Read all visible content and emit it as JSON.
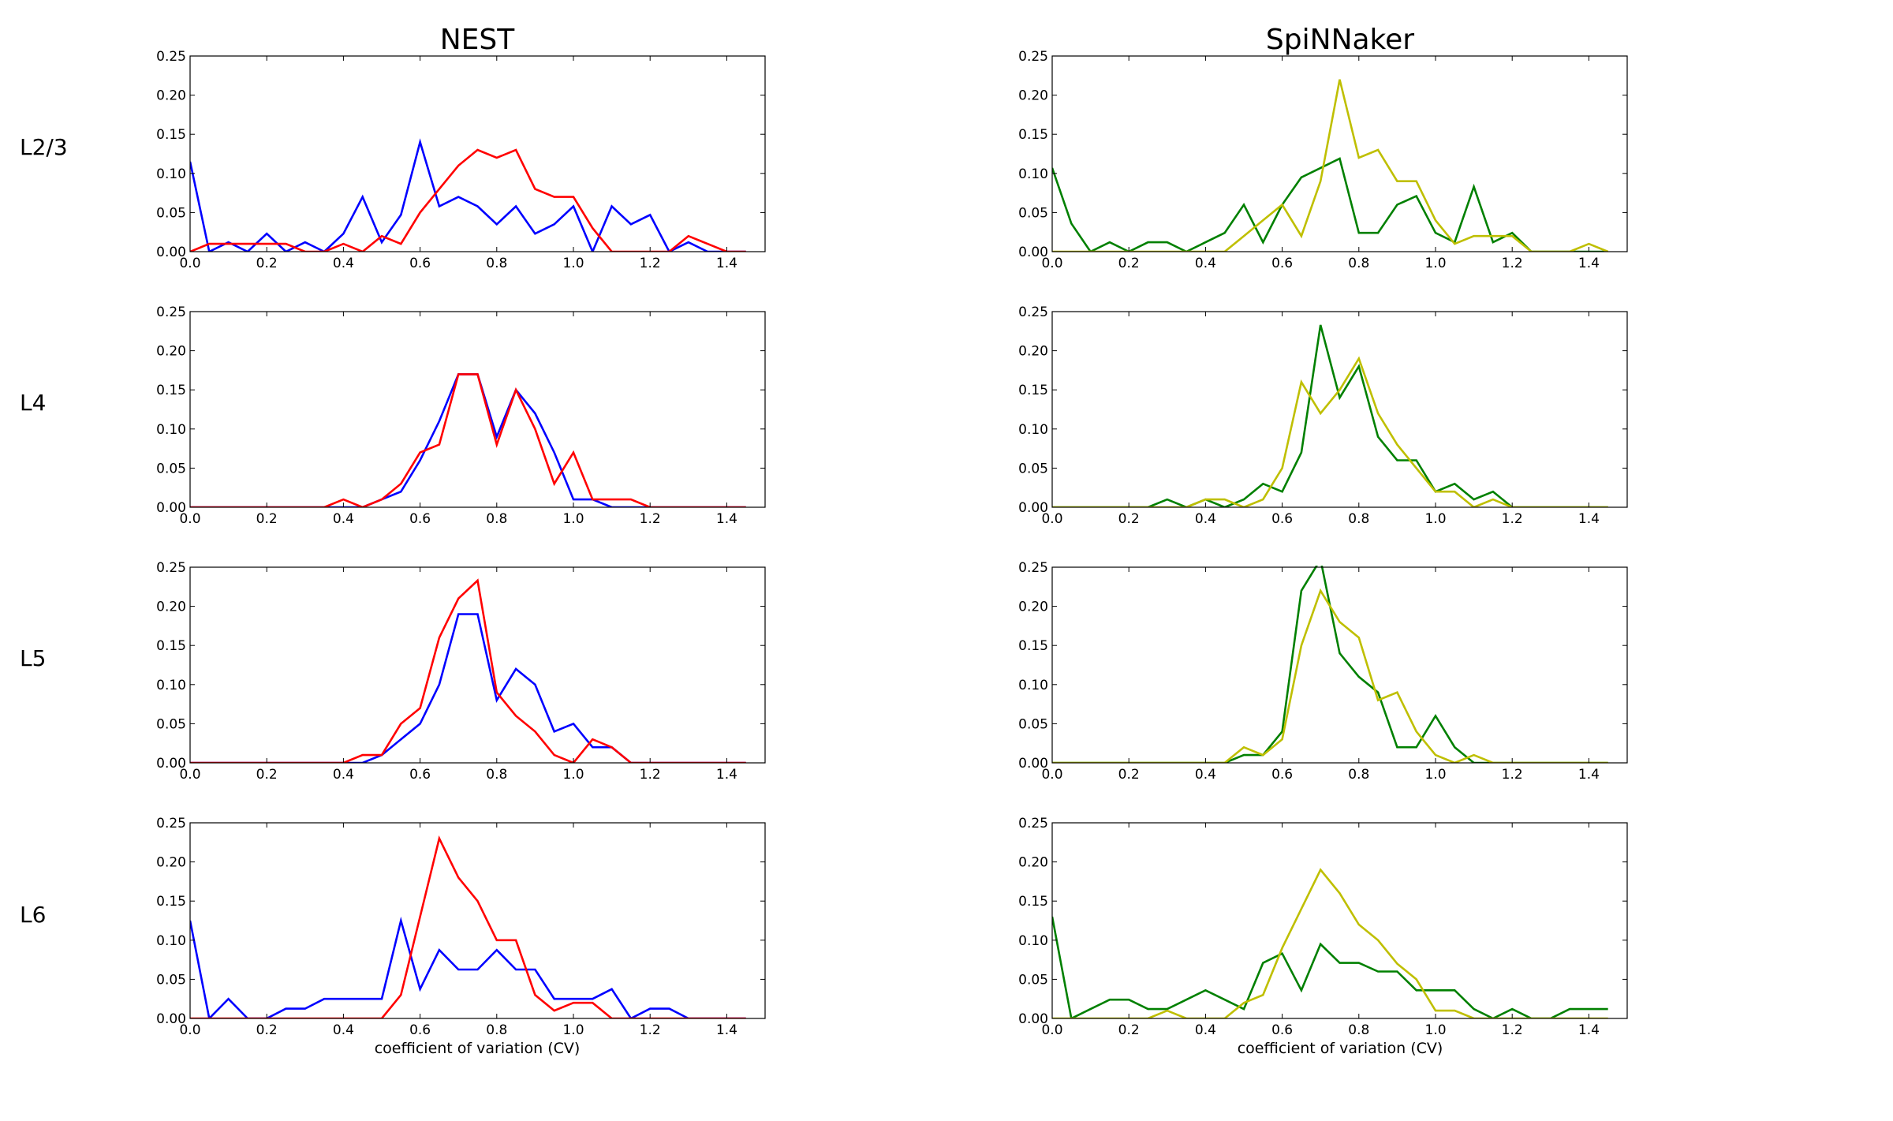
{
  "figure": {
    "column_titles": [
      "NEST",
      "SpiNNaker"
    ],
    "row_labels": [
      "L2/3",
      "L4",
      "L5",
      "L6"
    ],
    "xlabel": "coefficient of variation (CV)"
  },
  "colors": {
    "nest_series_1": "#0000ff",
    "nest_series_2": "#ff0000",
    "spinnaker_series_1": "#008000",
    "spinnaker_series_2": "#bfbf00",
    "axes": "#000000"
  },
  "chart_data": [
    {
      "type": "line",
      "column": "NEST",
      "row": "L2/3",
      "xlim": [
        0,
        1.5
      ],
      "ylim": [
        0,
        0.25
      ],
      "xticks": [
        "0.0",
        "0.2",
        "0.4",
        "0.6",
        "0.8",
        "1.0",
        "1.2",
        "1.4"
      ],
      "yticks": [
        "0.00",
        "0.05",
        "0.10",
        "0.15",
        "0.20",
        "0.25"
      ],
      "x": [
        0,
        0.05,
        0.1,
        0.15,
        0.2,
        0.25,
        0.3,
        0.35,
        0.4,
        0.45,
        0.5,
        0.55,
        0.6,
        0.65,
        0.7,
        0.75,
        0.8,
        0.85,
        0.9,
        0.95,
        1.0,
        1.05,
        1.1,
        1.15,
        1.2,
        1.25,
        1.3,
        1.35,
        1.4,
        1.45
      ],
      "series": [
        {
          "color": "blue",
          "values": [
            0.115,
            0,
            0.012,
            0,
            0.023,
            0,
            0.012,
            0,
            0.023,
            0.07,
            0.012,
            0.047,
            0.14,
            0.058,
            0.07,
            0.058,
            0.035,
            0.058,
            0.023,
            0.035,
            0.058,
            0,
            0.058,
            0.035,
            0.047,
            0,
            0.012,
            0,
            0,
            0
          ]
        },
        {
          "color": "red",
          "values": [
            0,
            0.01,
            0.01,
            0.01,
            0.01,
            0.01,
            0,
            0,
            0.01,
            0,
            0.02,
            0.01,
            0.05,
            0.08,
            0.11,
            0.13,
            0.12,
            0.13,
            0.08,
            0.07,
            0.07,
            0.03,
            0,
            0,
            0,
            0,
            0.02,
            0.01,
            0,
            0
          ]
        }
      ]
    },
    {
      "type": "line",
      "column": "SpiNNaker",
      "row": "L2/3",
      "xlim": [
        0,
        1.5
      ],
      "ylim": [
        0,
        0.25
      ],
      "xticks": [
        "0.0",
        "0.2",
        "0.4",
        "0.6",
        "0.8",
        "1.0",
        "1.2",
        "1.4"
      ],
      "yticks": [
        "0.00",
        "0.05",
        "0.10",
        "0.15",
        "0.20",
        "0.25"
      ],
      "x": [
        0,
        0.05,
        0.1,
        0.15,
        0.2,
        0.25,
        0.3,
        0.35,
        0.4,
        0.45,
        0.5,
        0.55,
        0.6,
        0.65,
        0.7,
        0.75,
        0.8,
        0.85,
        0.9,
        0.95,
        1.0,
        1.05,
        1.1,
        1.15,
        1.2,
        1.25,
        1.3,
        1.35,
        1.4,
        1.45
      ],
      "series": [
        {
          "color": "green",
          "values": [
            0.107,
            0.036,
            0,
            0.012,
            0,
            0.012,
            0.012,
            0,
            0.012,
            0.024,
            0.06,
            0.012,
            0.06,
            0.095,
            0.107,
            0.119,
            0.024,
            0.024,
            0.06,
            0.071,
            0.024,
            0.012,
            0.083,
            0.012,
            0.024,
            0,
            0,
            0,
            0,
            0
          ]
        },
        {
          "color": "yellow",
          "values": [
            0,
            0,
            0,
            0,
            0,
            0,
            0,
            0,
            0,
            0,
            0.02,
            0.04,
            0.06,
            0.02,
            0.09,
            0.22,
            0.12,
            0.13,
            0.09,
            0.09,
            0.04,
            0.01,
            0.02,
            0.02,
            0.02,
            0,
            0,
            0,
            0.01,
            0
          ]
        }
      ]
    },
    {
      "type": "line",
      "column": "NEST",
      "row": "L4",
      "xlim": [
        0,
        1.5
      ],
      "ylim": [
        0,
        0.25
      ],
      "xticks": [
        "0.0",
        "0.2",
        "0.4",
        "0.6",
        "0.8",
        "1.0",
        "1.2",
        "1.4"
      ],
      "yticks": [
        "0.00",
        "0.05",
        "0.10",
        "0.15",
        "0.20",
        "0.25"
      ],
      "x": [
        0,
        0.05,
        0.1,
        0.15,
        0.2,
        0.25,
        0.3,
        0.35,
        0.4,
        0.45,
        0.5,
        0.55,
        0.6,
        0.65,
        0.7,
        0.75,
        0.8,
        0.85,
        0.9,
        0.95,
        1.0,
        1.05,
        1.1,
        1.15,
        1.2,
        1.25,
        1.3,
        1.35,
        1.4,
        1.45
      ],
      "series": [
        {
          "color": "blue",
          "values": [
            0,
            0,
            0,
            0,
            0,
            0,
            0,
            0,
            0,
            0,
            0.01,
            0.02,
            0.06,
            0.11,
            0.17,
            0.17,
            0.09,
            0.15,
            0.12,
            0.07,
            0.01,
            0.01,
            0,
            0,
            0,
            0,
            0,
            0,
            0,
            0
          ]
        },
        {
          "color": "red",
          "values": [
            0,
            0,
            0,
            0,
            0,
            0,
            0,
            0,
            0.01,
            0,
            0.01,
            0.03,
            0.07,
            0.08,
            0.17,
            0.17,
            0.08,
            0.15,
            0.1,
            0.03,
            0.07,
            0.01,
            0.01,
            0.01,
            0,
            0,
            0,
            0,
            0,
            0
          ]
        }
      ]
    },
    {
      "type": "line",
      "column": "SpiNNaker",
      "row": "L4",
      "xlim": [
        0,
        1.5
      ],
      "ylim": [
        0,
        0.25
      ],
      "xticks": [
        "0.0",
        "0.2",
        "0.4",
        "0.6",
        "0.8",
        "1.0",
        "1.2",
        "1.4"
      ],
      "yticks": [
        "0.00",
        "0.05",
        "0.10",
        "0.15",
        "0.20",
        "0.25"
      ],
      "x": [
        0,
        0.05,
        0.1,
        0.15,
        0.2,
        0.25,
        0.3,
        0.35,
        0.4,
        0.45,
        0.5,
        0.55,
        0.6,
        0.65,
        0.7,
        0.75,
        0.8,
        0.85,
        0.9,
        0.95,
        1.0,
        1.05,
        1.1,
        1.15,
        1.2,
        1.25,
        1.3,
        1.35,
        1.4,
        1.45
      ],
      "series": [
        {
          "color": "green",
          "values": [
            0,
            0,
            0,
            0,
            0,
            0,
            0.01,
            0,
            0.01,
            0,
            0.01,
            0.03,
            0.02,
            0.07,
            0.233,
            0.14,
            0.18,
            0.09,
            0.06,
            0.06,
            0.02,
            0.03,
            0.01,
            0.02,
            0,
            0,
            0,
            0,
            0,
            0
          ]
        },
        {
          "color": "yellow",
          "values": [
            0,
            0,
            0,
            0,
            0,
            0,
            0,
            0,
            0.01,
            0.01,
            0,
            0.01,
            0.05,
            0.16,
            0.12,
            0.15,
            0.19,
            0.12,
            0.08,
            0.05,
            0.02,
            0.02,
            0,
            0.01,
            0,
            0,
            0,
            0,
            0,
            0
          ]
        }
      ]
    },
    {
      "type": "line",
      "column": "NEST",
      "row": "L5",
      "xlim": [
        0,
        1.5
      ],
      "ylim": [
        0,
        0.25
      ],
      "xticks": [
        "0.0",
        "0.2",
        "0.4",
        "0.6",
        "0.8",
        "1.0",
        "1.2",
        "1.4"
      ],
      "yticks": [
        "0.00",
        "0.05",
        "0.10",
        "0.15",
        "0.20",
        "0.25"
      ],
      "x": [
        0,
        0.05,
        0.1,
        0.15,
        0.2,
        0.25,
        0.3,
        0.35,
        0.4,
        0.45,
        0.5,
        0.55,
        0.6,
        0.65,
        0.7,
        0.75,
        0.8,
        0.85,
        0.9,
        0.95,
        1.0,
        1.05,
        1.1,
        1.15,
        1.2,
        1.25,
        1.3,
        1.35,
        1.4,
        1.45
      ],
      "series": [
        {
          "color": "blue",
          "values": [
            0,
            0,
            0,
            0,
            0,
            0,
            0,
            0,
            0,
            0,
            0.01,
            0.03,
            0.05,
            0.1,
            0.19,
            0.19,
            0.08,
            0.12,
            0.1,
            0.04,
            0.05,
            0.02,
            0.02,
            0,
            0,
            0,
            0,
            0,
            0,
            0
          ]
        },
        {
          "color": "red",
          "values": [
            0,
            0,
            0,
            0,
            0,
            0,
            0,
            0,
            0,
            0.01,
            0.01,
            0.05,
            0.07,
            0.16,
            0.21,
            0.233,
            0.09,
            0.06,
            0.04,
            0.01,
            0,
            0.03,
            0.02,
            0,
            0,
            0,
            0,
            0,
            0,
            0
          ]
        }
      ]
    },
    {
      "type": "line",
      "column": "SpiNNaker",
      "row": "L5",
      "xlim": [
        0,
        1.5
      ],
      "ylim": [
        0,
        0.25
      ],
      "xticks": [
        "0.0",
        "0.2",
        "0.4",
        "0.6",
        "0.8",
        "1.0",
        "1.2",
        "1.4"
      ],
      "yticks": [
        "0.00",
        "0.05",
        "0.10",
        "0.15",
        "0.20",
        "0.25"
      ],
      "x": [
        0,
        0.05,
        0.1,
        0.15,
        0.2,
        0.25,
        0.3,
        0.35,
        0.4,
        0.45,
        0.5,
        0.55,
        0.6,
        0.65,
        0.7,
        0.75,
        0.8,
        0.85,
        0.9,
        0.95,
        1.0,
        1.05,
        1.1,
        1.15,
        1.2,
        1.25,
        1.3,
        1.35,
        1.4,
        1.45
      ],
      "series": [
        {
          "color": "green",
          "values": [
            0,
            0,
            0,
            0,
            0,
            0,
            0,
            0,
            0,
            0,
            0.01,
            0.01,
            0.04,
            0.22,
            0.26,
            0.14,
            0.11,
            0.09,
            0.02,
            0.02,
            0.06,
            0.02,
            0,
            0,
            0,
            0,
            0,
            0,
            0,
            0
          ]
        },
        {
          "color": "yellow",
          "values": [
            0,
            0,
            0,
            0,
            0,
            0,
            0,
            0,
            0,
            0,
            0.02,
            0.01,
            0.03,
            0.15,
            0.22,
            0.18,
            0.16,
            0.08,
            0.09,
            0.04,
            0.01,
            0,
            0.01,
            0,
            0,
            0,
            0,
            0,
            0,
            0
          ]
        }
      ]
    },
    {
      "type": "line",
      "column": "NEST",
      "row": "L6",
      "xlim": [
        0,
        1.5
      ],
      "ylim": [
        0,
        0.25
      ],
      "xticks": [
        "0.0",
        "0.2",
        "0.4",
        "0.6",
        "0.8",
        "1.0",
        "1.2",
        "1.4"
      ],
      "yticks": [
        "0.00",
        "0.05",
        "0.10",
        "0.15",
        "0.20",
        "0.25"
      ],
      "xlabel": "coefficient of variation (CV)",
      "x": [
        0,
        0.05,
        0.1,
        0.15,
        0.2,
        0.25,
        0.3,
        0.35,
        0.4,
        0.45,
        0.5,
        0.55,
        0.6,
        0.65,
        0.7,
        0.75,
        0.8,
        0.85,
        0.9,
        0.95,
        1.0,
        1.05,
        1.1,
        1.15,
        1.2,
        1.25,
        1.3,
        1.35,
        1.4,
        1.45
      ],
      "series": [
        {
          "color": "blue",
          "values": [
            0.125,
            0,
            0.025,
            0,
            0,
            0.0125,
            0.0125,
            0.025,
            0.025,
            0.025,
            0.025,
            0.125,
            0.0375,
            0.0875,
            0.0625,
            0.0625,
            0.0875,
            0.0625,
            0.0625,
            0.025,
            0.025,
            0.025,
            0.0375,
            0,
            0.0125,
            0.0125,
            0,
            0,
            0,
            0
          ]
        },
        {
          "color": "red",
          "values": [
            0,
            0,
            0,
            0,
            0,
            0,
            0,
            0,
            0,
            0,
            0,
            0.03,
            0.13,
            0.23,
            0.18,
            0.15,
            0.1,
            0.1,
            0.03,
            0.01,
            0.02,
            0.02,
            0,
            0,
            0,
            0,
            0,
            0,
            0,
            0
          ]
        }
      ]
    },
    {
      "type": "line",
      "column": "SpiNNaker",
      "row": "L6",
      "xlim": [
        0,
        1.5
      ],
      "ylim": [
        0,
        0.25
      ],
      "xticks": [
        "0.0",
        "0.2",
        "0.4",
        "0.6",
        "0.8",
        "1.0",
        "1.2",
        "1.4"
      ],
      "yticks": [
        "0.00",
        "0.05",
        "0.10",
        "0.15",
        "0.20",
        "0.25"
      ],
      "xlabel": "coefficient of variation (CV)",
      "x": [
        0,
        0.05,
        0.1,
        0.15,
        0.2,
        0.25,
        0.3,
        0.35,
        0.4,
        0.45,
        0.5,
        0.55,
        0.6,
        0.65,
        0.7,
        0.75,
        0.8,
        0.85,
        0.9,
        0.95,
        1.0,
        1.05,
        1.1,
        1.15,
        1.2,
        1.25,
        1.3,
        1.35,
        1.4,
        1.45
      ],
      "series": [
        {
          "color": "green",
          "values": [
            0.13,
            0,
            0.012,
            0.024,
            0.024,
            0.012,
            0.012,
            0.024,
            0.036,
            0.024,
            0.012,
            0.071,
            0.083,
            0.036,
            0.095,
            0.071,
            0.071,
            0.06,
            0.06,
            0.036,
            0.036,
            0.036,
            0.012,
            0,
            0.012,
            0,
            0,
            0.012,
            0.012,
            0.012
          ]
        },
        {
          "color": "yellow",
          "values": [
            0,
            0,
            0,
            0,
            0,
            0,
            0.01,
            0,
            0,
            0,
            0.02,
            0.03,
            0.09,
            0.14,
            0.19,
            0.16,
            0.12,
            0.1,
            0.07,
            0.05,
            0.01,
            0.01,
            0,
            0,
            0,
            0,
            0,
            0,
            0,
            0
          ]
        }
      ]
    }
  ]
}
